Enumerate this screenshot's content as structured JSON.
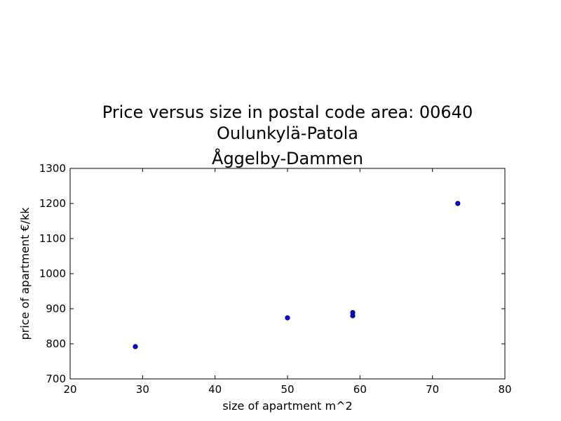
{
  "chart_data": {
    "type": "scatter",
    "title_lines": [
      "Price versus size in postal code area: 00640",
      "Oulunkylä-Patola",
      "Åggelby-Dammen"
    ],
    "xlabel": "size of apartment m^2",
    "ylabel": "price of apartment €/kk",
    "xlim": [
      20,
      80
    ],
    "ylim": [
      700,
      1300
    ],
    "xticks": [
      20,
      30,
      40,
      50,
      60,
      70,
      80
    ],
    "yticks": [
      700,
      800,
      900,
      1000,
      1100,
      1200,
      1300
    ],
    "grid": false,
    "marker_color": "#0000ff",
    "points": [
      {
        "x": 29,
        "y": 792
      },
      {
        "x": 50,
        "y": 874
      },
      {
        "x": 59,
        "y": 880
      },
      {
        "x": 59,
        "y": 889
      },
      {
        "x": 73.5,
        "y": 1200
      }
    ]
  }
}
